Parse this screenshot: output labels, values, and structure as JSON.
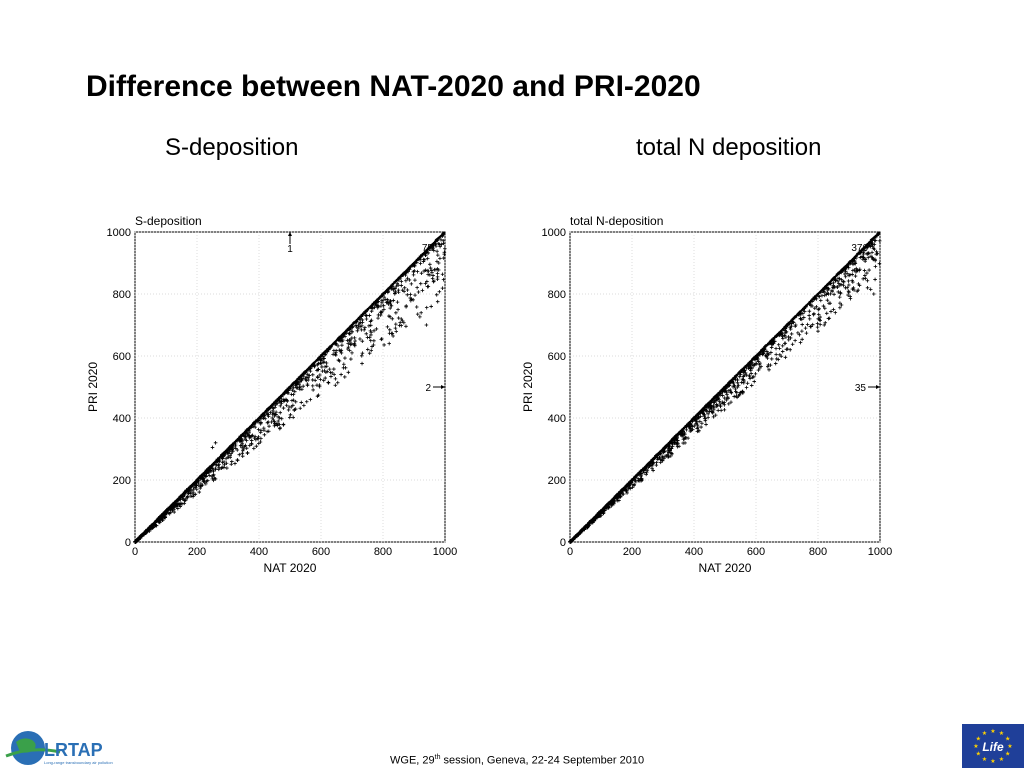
{
  "slide": {
    "title": "Difference between NAT-2020 and PRI-2020",
    "subtitle_left": "S-deposition",
    "subtitle_right": "total N deposition"
  },
  "footer": {
    "text_prefix": "WGE, 29",
    "text_sup": "th",
    "text_suffix": " session, Geneva, 22-24 September 2010",
    "logo_left_text": "LRTAP",
    "logo_left_subtext": "Long-range transboundary air pollution",
    "logo_right_text": "Life"
  },
  "colors": {
    "eu_blue": "#1f3f99",
    "eu_star": "#ffd200",
    "lrtap_blue": "#2a6fb5",
    "lrtap_green": "#3aa04a"
  },
  "chart_data": [
    {
      "type": "scatter",
      "title": "S-deposition",
      "xlabel": "NAT 2020",
      "ylabel": "PRI 2020",
      "xlim": [
        0,
        1000
      ],
      "ylim": [
        0,
        1000
      ],
      "xticks": [
        "0",
        "200",
        "400",
        "600",
        "800",
        "1000"
      ],
      "yticks": [
        "0",
        "200",
        "400",
        "600",
        "800",
        "1000"
      ],
      "grid": true,
      "main_relationship": {
        "slope": 1.0,
        "scatter_below_diagonal": true
      },
      "outliers": [
        {
          "x": 940,
          "y": 700
        },
        {
          "x": 960,
          "y": 850
        },
        {
          "x": 980,
          "y": 900
        },
        {
          "x": 820,
          "y": 640
        },
        {
          "x": 840,
          "y": 690
        },
        {
          "x": 830,
          "y": 720
        },
        {
          "x": 700,
          "y": 610
        },
        {
          "x": 750,
          "y": 660
        },
        {
          "x": 720,
          "y": 690
        },
        {
          "x": 870,
          "y": 820
        },
        {
          "x": 260,
          "y": 320
        },
        {
          "x": 250,
          "y": 305
        }
      ],
      "offscale_annotations": [
        {
          "label": "1",
          "direction": "up",
          "x": 500,
          "y": 1000
        },
        {
          "label": "75",
          "direction": "up-right",
          "x": 1000,
          "y": 1000
        },
        {
          "label": "2",
          "direction": "right",
          "x": 1000,
          "y": 500
        }
      ]
    },
    {
      "type": "scatter",
      "title": "total N-deposition",
      "xlabel": "NAT 2020",
      "ylabel": "PRI 2020",
      "xlim": [
        0,
        1000
      ],
      "ylim": [
        0,
        1000
      ],
      "xticks": [
        "0",
        "200",
        "400",
        "600",
        "800",
        "1000"
      ],
      "yticks": [
        "0",
        "200",
        "400",
        "600",
        "800",
        "1000"
      ],
      "grid": true,
      "main_relationship": {
        "slope": 1.0,
        "scatter_below_diagonal": true
      },
      "outliers": [
        {
          "x": 980,
          "y": 800
        },
        {
          "x": 970,
          "y": 815
        },
        {
          "x": 960,
          "y": 820
        },
        {
          "x": 850,
          "y": 750
        },
        {
          "x": 870,
          "y": 790
        },
        {
          "x": 800,
          "y": 680
        },
        {
          "x": 820,
          "y": 700
        },
        {
          "x": 760,
          "y": 690
        },
        {
          "x": 900,
          "y": 860
        }
      ],
      "offscale_annotations": [
        {
          "label": "376",
          "direction": "up-right",
          "x": 1000,
          "y": 1000
        },
        {
          "label": "35",
          "direction": "right",
          "x": 1000,
          "y": 500
        }
      ]
    }
  ]
}
